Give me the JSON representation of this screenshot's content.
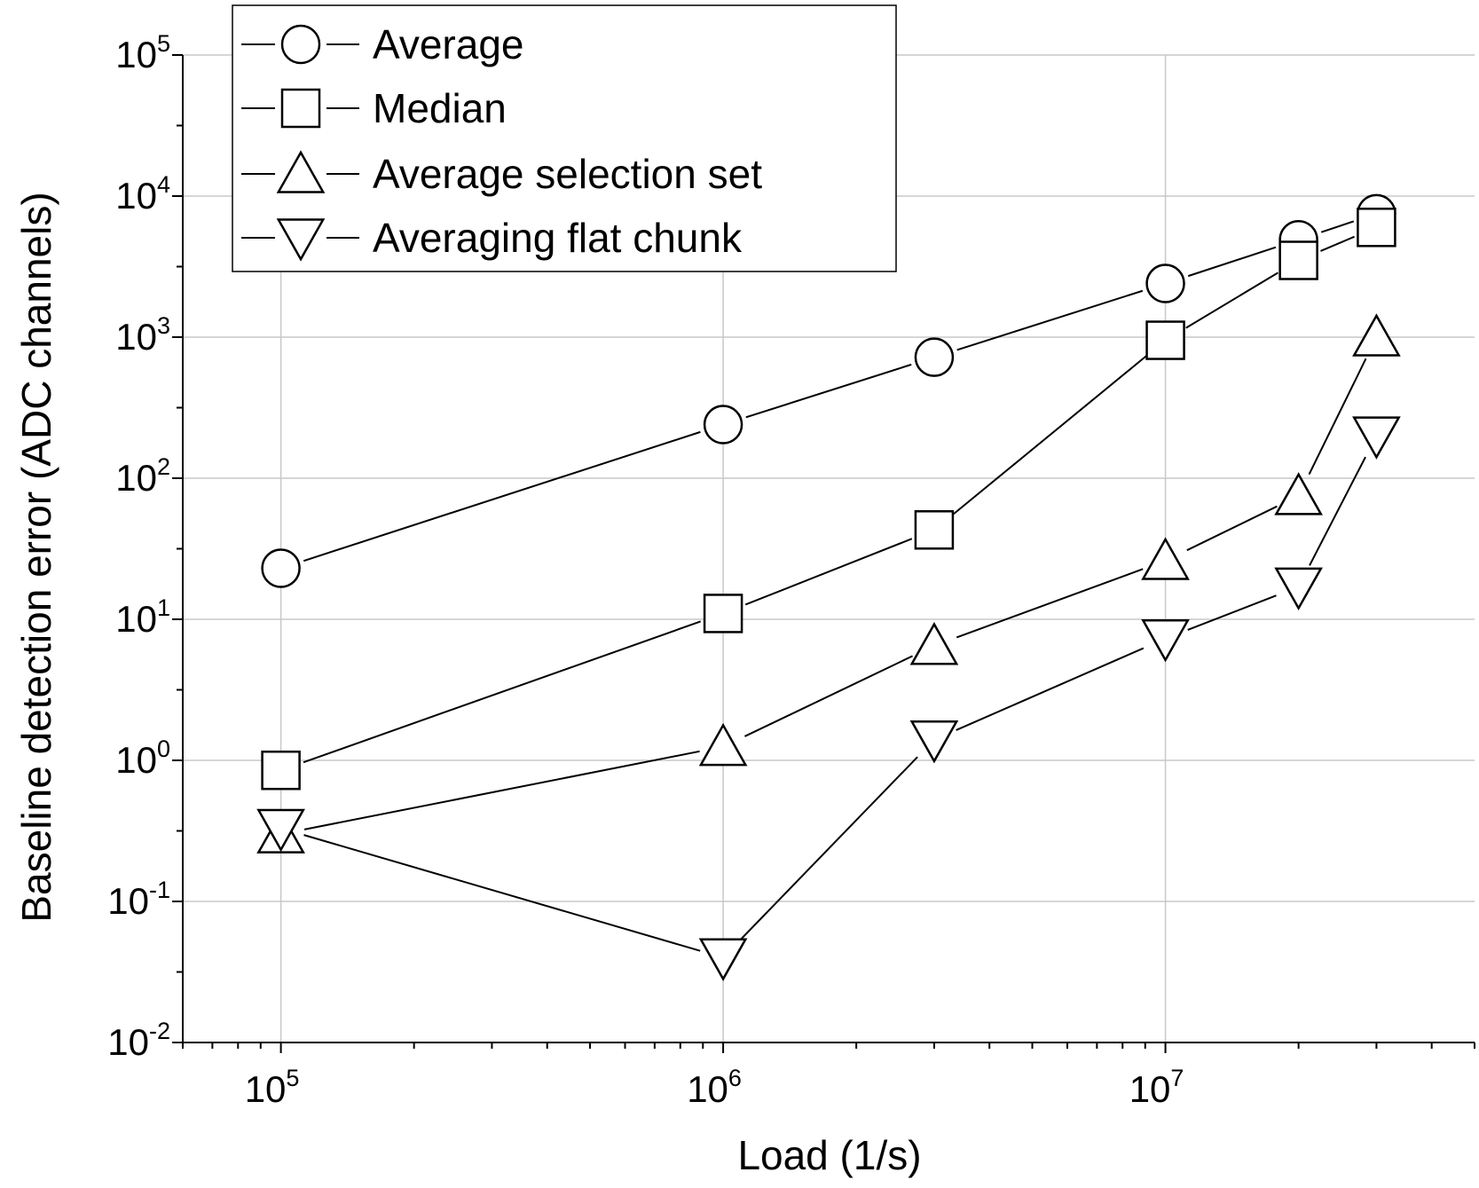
{
  "chart_data": {
    "type": "line",
    "xlabel": "Load (1/s)",
    "ylabel": "Baseline detection error (ADC channels)",
    "xscale": "log",
    "yscale": "log",
    "xlim": [
      60000,
      50000000
    ],
    "ylim": [
      0.01,
      100000
    ],
    "grid": true,
    "legend_position": "top-left",
    "x_ticks": [
      {
        "base": "10",
        "exp": "5",
        "value": 100000
      },
      {
        "base": "10",
        "exp": "6",
        "value": 1000000
      },
      {
        "base": "10",
        "exp": "7",
        "value": 10000000
      }
    ],
    "y_ticks": [
      {
        "base": "10",
        "exp": "-2",
        "value": 0.01
      },
      {
        "base": "10",
        "exp": "-1",
        "value": 0.1
      },
      {
        "base": "10",
        "exp": "0",
        "value": 1
      },
      {
        "base": "10",
        "exp": "1",
        "value": 10
      },
      {
        "base": "10",
        "exp": "2",
        "value": 100
      },
      {
        "base": "10",
        "exp": "3",
        "value": 1000
      },
      {
        "base": "10",
        "exp": "4",
        "value": 10000
      },
      {
        "base": "10",
        "exp": "5",
        "value": 100000
      }
    ],
    "series": [
      {
        "name": "Average",
        "marker": "circle",
        "x": [
          100000,
          1000000,
          3000000,
          10000000,
          20000000,
          30000000
        ],
        "y": [
          23,
          240,
          720,
          2400,
          4900,
          7500
        ]
      },
      {
        "name": "Median",
        "marker": "square",
        "x": [
          100000,
          1000000,
          3000000,
          10000000,
          20000000,
          30000000
        ],
        "y": [
          0.85,
          11,
          43,
          950,
          3500,
          6000
        ]
      },
      {
        "name": "Average selection set",
        "marker": "triangle-up",
        "x": [
          100000,
          1000000,
          3000000,
          10000000,
          20000000,
          30000000
        ],
        "y": [
          0.3,
          1.25,
          6.5,
          26,
          75,
          1000
        ]
      },
      {
        "name": "Averaging flat chunk",
        "marker": "triangle-down",
        "x": [
          100000,
          1000000,
          3000000,
          10000000,
          20000000,
          30000000
        ],
        "y": [
          0.33,
          0.04,
          1.4,
          7.3,
          17,
          200
        ]
      }
    ]
  }
}
